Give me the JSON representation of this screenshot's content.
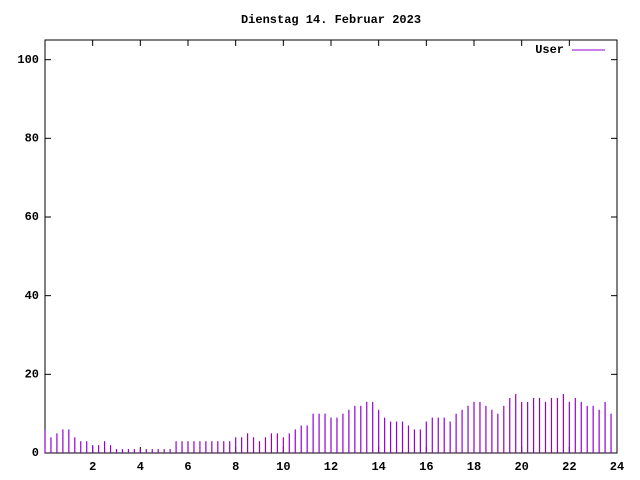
{
  "chart_data": {
    "type": "impulse",
    "title": "Dienstag 14. Februar 2023",
    "x": [
      0,
      0.25,
      0.5,
      0.75,
      1,
      1.25,
      1.5,
      1.75,
      2,
      2.25,
      2.5,
      2.75,
      3,
      3.25,
      3.5,
      3.75,
      4,
      4.25,
      4.5,
      4.75,
      5,
      5.25,
      5.5,
      5.75,
      6,
      6.25,
      6.5,
      6.75,
      7,
      7.25,
      7.5,
      7.75,
      8,
      8.25,
      8.5,
      8.75,
      9,
      9.25,
      9.5,
      9.75,
      10,
      10.25,
      10.5,
      10.75,
      11,
      11.25,
      11.5,
      11.75,
      12,
      12.25,
      12.5,
      12.75,
      13,
      13.25,
      13.5,
      13.75,
      14,
      14.25,
      14.5,
      14.75,
      15,
      15.25,
      15.5,
      15.75,
      16,
      16.25,
      16.5,
      16.75,
      17,
      17.25,
      17.5,
      17.75,
      18,
      18.25,
      18.5,
      18.75,
      19,
      19.25,
      19.5,
      19.75,
      20,
      20.25,
      20.5,
      20.75,
      21,
      21.25,
      21.5,
      21.75,
      22,
      22.25,
      22.5,
      22.75,
      23,
      23.25,
      23.5,
      23.75
    ],
    "series": [
      {
        "name": "User",
        "color": "#9400d3",
        "values": [
          6,
          4,
          5,
          6,
          6,
          4,
          3,
          3,
          2,
          2,
          3,
          2,
          1,
          1,
          1,
          1,
          1,
          1,
          1,
          1,
          1,
          1,
          3,
          3,
          3,
          3,
          3,
          3,
          3,
          3,
          3,
          3,
          4,
          4,
          5,
          4,
          3,
          4,
          5,
          5,
          4,
          5,
          6,
          7,
          7,
          10,
          10,
          10,
          9,
          9,
          10,
          11,
          12,
          12,
          13,
          13,
          11,
          9,
          8,
          8,
          8,
          7,
          6,
          6,
          8,
          9,
          9,
          9,
          8,
          10,
          11,
          12,
          13,
          13,
          12,
          11,
          10,
          12,
          14,
          15,
          13,
          13,
          14,
          14,
          13,
          14,
          14,
          15,
          13,
          14,
          13,
          12,
          12,
          11,
          13,
          10
        ]
      }
    ],
    "xlim": [
      0,
      24
    ],
    "ylim": [
      0,
      105
    ],
    "xticks": [
      2,
      4,
      6,
      8,
      10,
      12,
      14,
      16,
      18,
      20,
      22,
      24
    ],
    "yticks": [
      0,
      20,
      40,
      60,
      80,
      100
    ],
    "legend": "top-right"
  }
}
